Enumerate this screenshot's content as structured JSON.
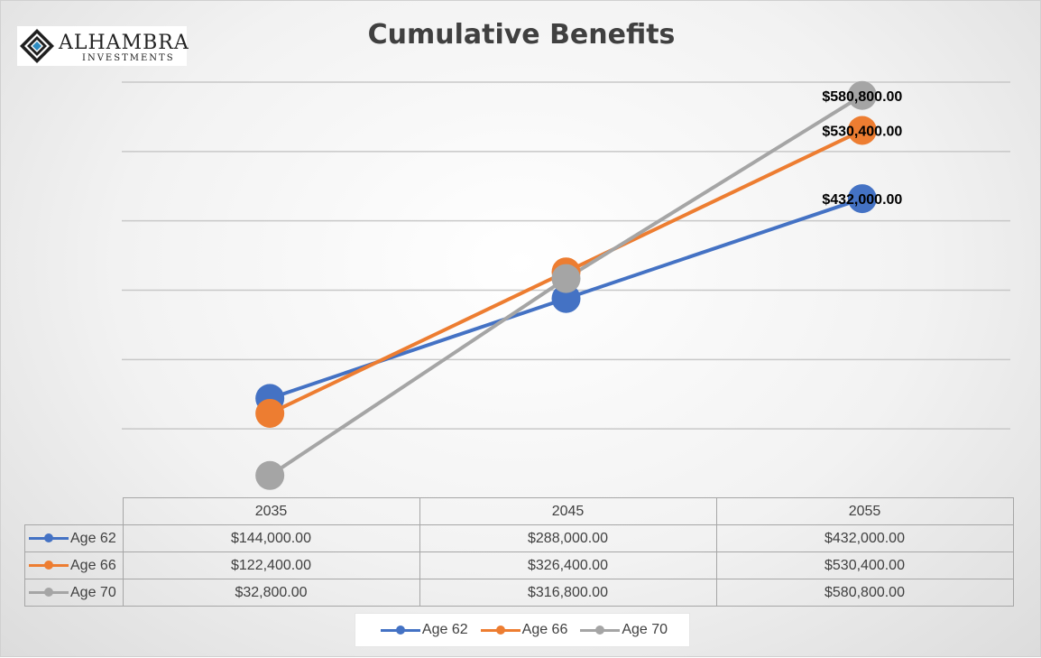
{
  "logo": {
    "name": "ALHAMBRA",
    "sub": "INVESTMENTS"
  },
  "chart_data": {
    "type": "line",
    "title": "Cumulative Benefits",
    "categories": [
      "2035",
      "2045",
      "2055"
    ],
    "ylim": [
      0,
      600000
    ],
    "grid": true,
    "legend": "bottom",
    "series": [
      {
        "name": "Age 62",
        "color": "#4472C4",
        "values": [
          144000,
          288000,
          432000
        ],
        "table_values": [
          "$144,000.00",
          "$288,000.00",
          "$432,000.00"
        ],
        "end_label": "$432,000.00"
      },
      {
        "name": "Age 66",
        "color": "#ED7D31",
        "values": [
          122400,
          326400,
          530400
        ],
        "table_values": [
          "$122,400.00",
          "$326,400.00",
          "$530,400.00"
        ],
        "end_label": "$530,400.00"
      },
      {
        "name": "Age 70",
        "color": "#A5A5A5",
        "values": [
          32800,
          316800,
          580800
        ],
        "table_values": [
          "$32,800.00",
          "$316,800.00",
          "$580,800.00"
        ],
        "end_label": "$580,800.00"
      }
    ]
  }
}
